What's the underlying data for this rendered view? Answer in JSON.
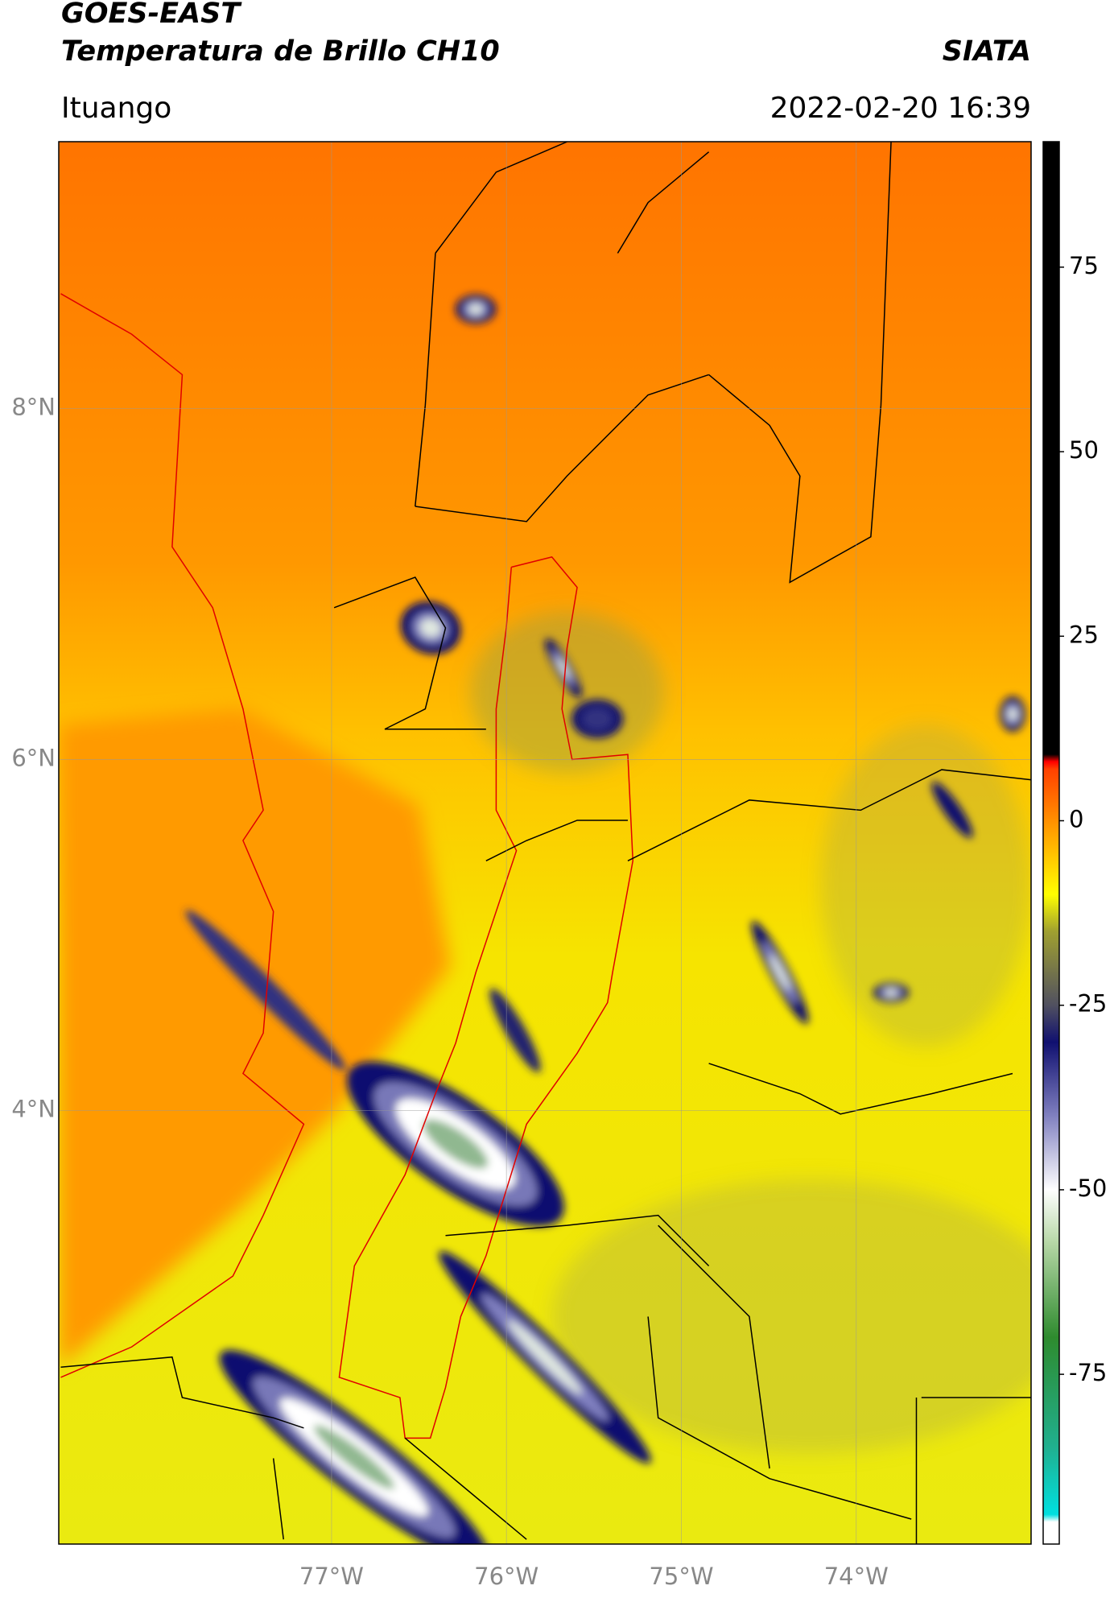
{
  "chart_data": {
    "type": "map",
    "title": "GOES-EAST",
    "subtitle": "Temperatura de Brillo CH10",
    "source": "SIATA",
    "region": "Ituango",
    "date": "2022-02-20 16:39",
    "xlim": [
      -78.56,
      -73.0
    ],
    "ylim": [
      1.53,
      9.52
    ],
    "xticks": [
      {
        "value": -77,
        "label": "77°W"
      },
      {
        "value": -76,
        "label": "76°W"
      },
      {
        "value": -75,
        "label": "75°W"
      },
      {
        "value": -74,
        "label": "74°W"
      }
    ],
    "yticks": [
      {
        "value": 8,
        "label": "8°N"
      },
      {
        "value": 6,
        "label": "6°N"
      },
      {
        "value": 4,
        "label": "4°N"
      }
    ],
    "grid": true,
    "colorbar": {
      "lim": [
        -98,
        92
      ],
      "ticks": [
        75,
        50,
        25,
        0,
        -25,
        -50,
        -75
      ],
      "colormap": [
        {
          "value": -98,
          "color": "#ffffff"
        },
        {
          "value": -95,
          "color": "#ffffff"
        },
        {
          "value": -94,
          "color": "#00e0e0"
        },
        {
          "value": -85,
          "color": "#20b090"
        },
        {
          "value": -70,
          "color": "#2e8b2e"
        },
        {
          "value": -57,
          "color": "#b8d8a8"
        },
        {
          "value": -50,
          "color": "#ffffff"
        },
        {
          "value": -40,
          "color": "#8080c0"
        },
        {
          "value": -30,
          "color": "#101070"
        },
        {
          "value": -25,
          "color": "#505060"
        },
        {
          "value": -15,
          "color": "#a0a030"
        },
        {
          "value": -10,
          "color": "#ffff00"
        },
        {
          "value": 0,
          "color": "#ff9000"
        },
        {
          "value": 7,
          "color": "#ff4000"
        },
        {
          "value": 8,
          "color": "#ff0000"
        },
        {
          "value": 9,
          "color": "#000000"
        },
        {
          "value": 92,
          "color": "#000000"
        }
      ]
    }
  }
}
